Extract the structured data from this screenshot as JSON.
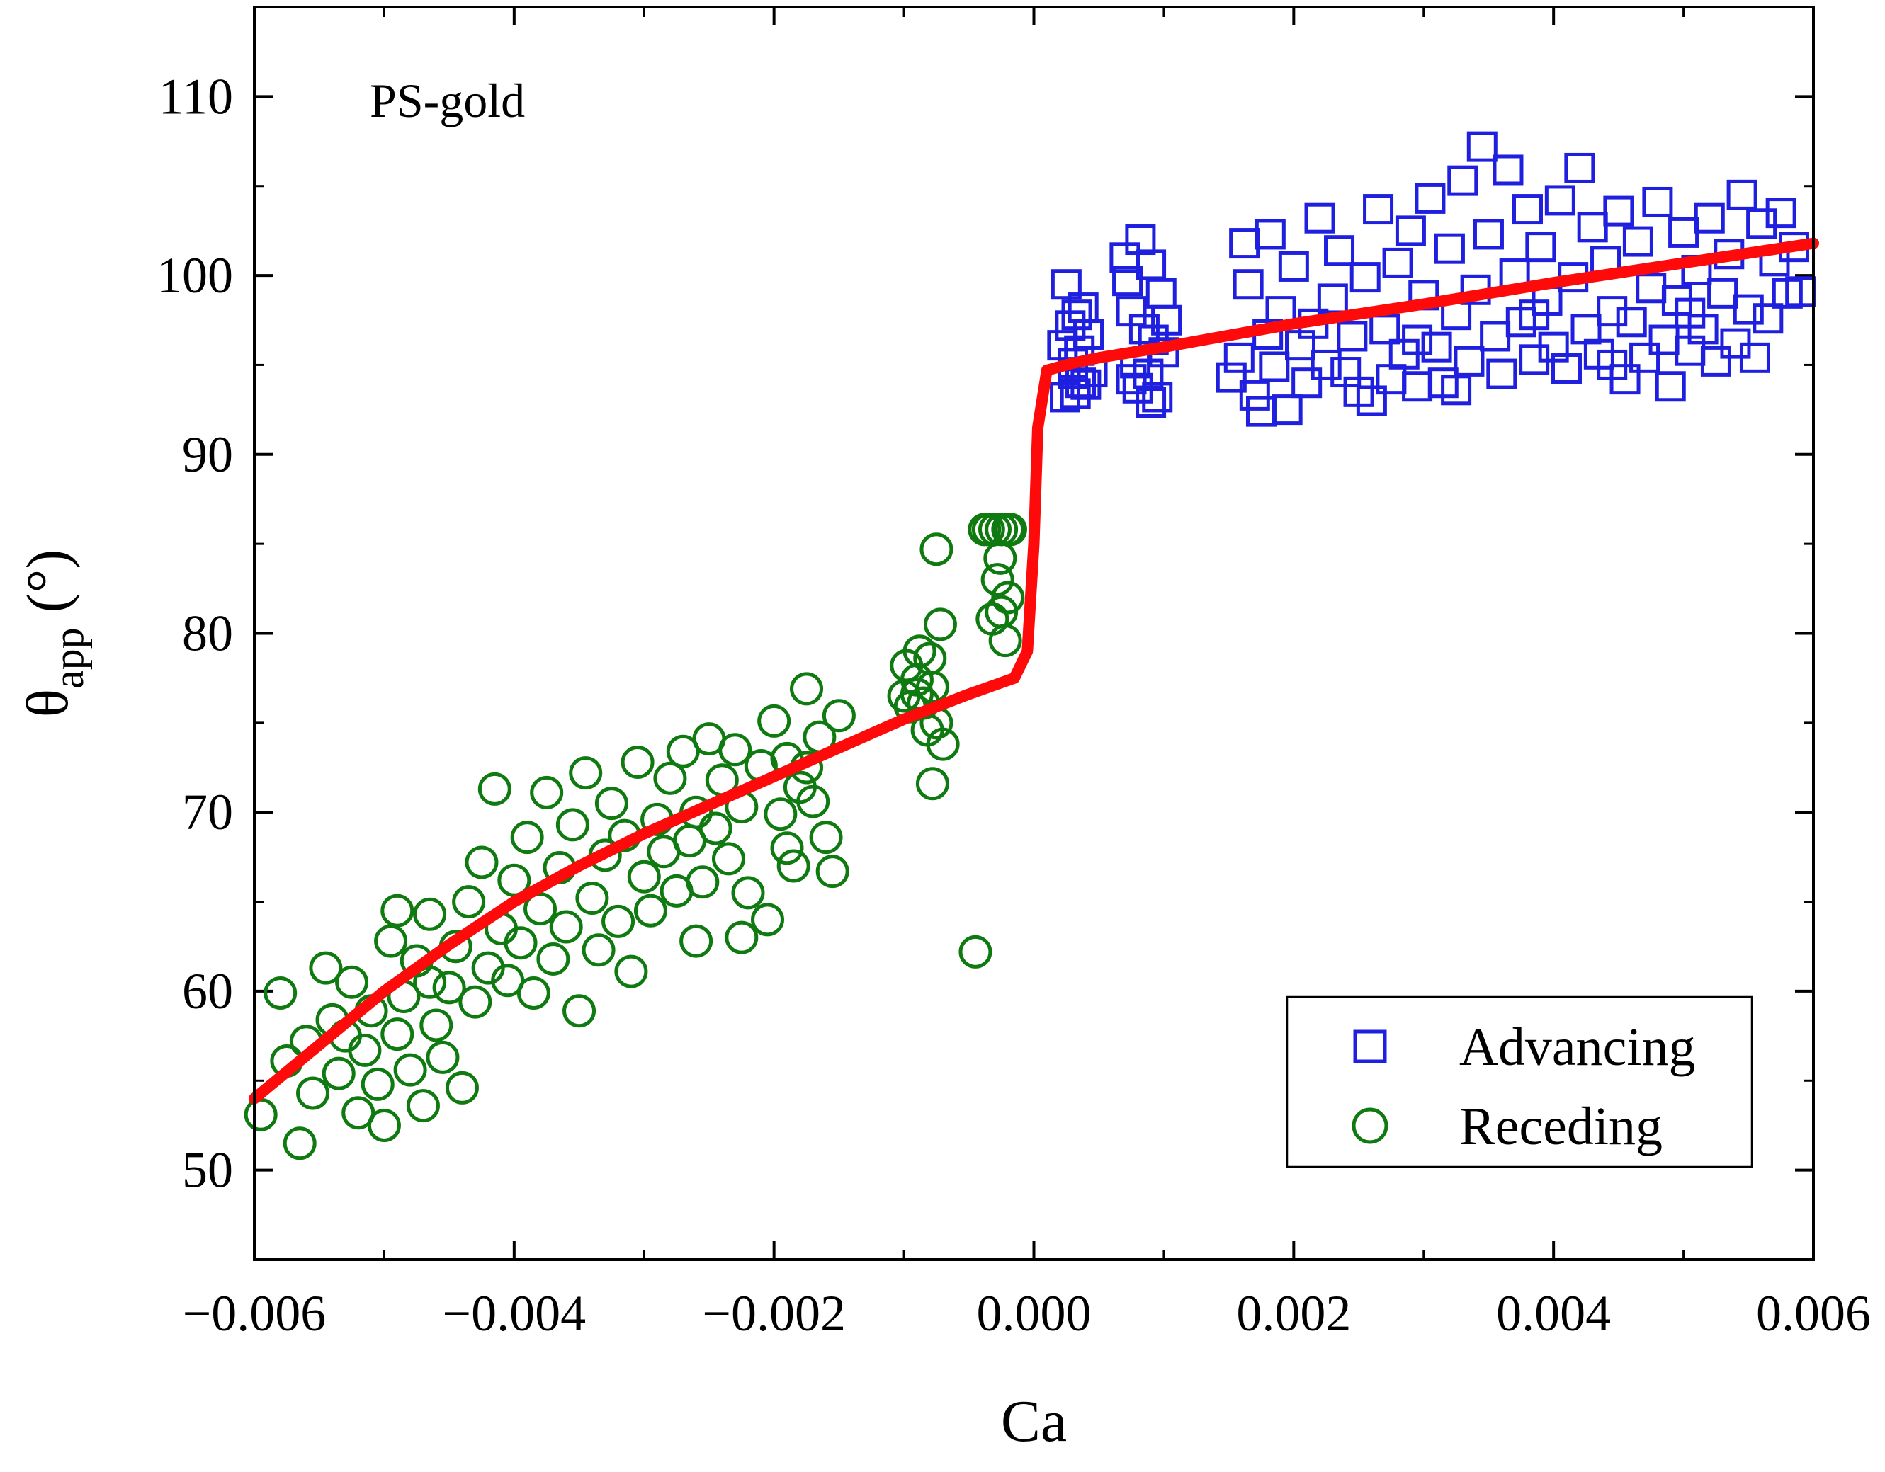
{
  "chart_data": {
    "type": "scatter",
    "annotation": "PS-gold",
    "xlabel": "Ca",
    "ylabel_main": "θ",
    "ylabel_sub": "app",
    "ylabel_unit": " (°)",
    "xlim": [
      -0.006,
      0.006
    ],
    "ylim": [
      45,
      115
    ],
    "xticks": [
      -0.006,
      -0.004,
      -0.002,
      0.0,
      0.002,
      0.004,
      0.006
    ],
    "xtick_labels": [
      "−0.006",
      "−0.004",
      "−0.002",
      "0.000",
      "0.002",
      "0.004",
      "0.006"
    ],
    "yticks": [
      50,
      60,
      70,
      80,
      90,
      100,
      110
    ],
    "ytick_labels": [
      "50",
      "60",
      "70",
      "80",
      "90",
      "100",
      "110"
    ],
    "legend_position": "bottom-right",
    "colors": {
      "advancing": "#1f1fe0",
      "receding": "#0f7a0f",
      "fit": "#ff0a0a"
    },
    "series": [
      {
        "name": "Advancing",
        "marker": "square",
        "points": [
          [
            0.00025,
            99.5
          ],
          [
            0.00028,
            97.2
          ],
          [
            0.0003,
            94.5
          ],
          [
            0.00032,
            93.4
          ],
          [
            0.00035,
            95.8
          ],
          [
            0.00022,
            96.1
          ],
          [
            0.00038,
            98.2
          ],
          [
            0.0004,
            93.9
          ],
          [
            0.00045,
            94.6
          ],
          [
            0.00042,
            96.7
          ],
          [
            0.0003,
            95.1
          ],
          [
            0.00036,
            94.0
          ],
          [
            0.00024,
            93.2
          ],
          [
            0.00033,
            97.8
          ],
          [
            0.0007,
            101.0
          ],
          [
            0.00072,
            99.7
          ],
          [
            0.00075,
            98.0
          ],
          [
            0.00078,
            95.1
          ],
          [
            0.0008,
            93.7
          ],
          [
            0.00082,
            102.0
          ],
          [
            0.00085,
            97.0
          ],
          [
            0.00088,
            94.5
          ],
          [
            0.0009,
            100.6
          ],
          [
            0.00092,
            96.4
          ],
          [
            0.00095,
            93.2
          ],
          [
            0.00098,
            99.0
          ],
          [
            0.001,
            95.7
          ],
          [
            0.00102,
            97.5
          ],
          [
            0.00075,
            94.2
          ],
          [
            0.0009,
            92.9
          ],
          [
            0.00152,
            94.3
          ],
          [
            0.00158,
            95.4
          ],
          [
            0.00162,
            101.8
          ],
          [
            0.00165,
            99.5
          ],
          [
            0.0017,
            93.3
          ],
          [
            0.00175,
            92.4
          ],
          [
            0.0018,
            96.7
          ],
          [
            0.00182,
            102.3
          ],
          [
            0.00185,
            94.9
          ],
          [
            0.0019,
            98.0
          ],
          [
            0.00195,
            92.5
          ],
          [
            0.002,
            100.5
          ],
          [
            0.00205,
            96.1
          ],
          [
            0.0021,
            94.0
          ],
          [
            0.00215,
            97.3
          ],
          [
            0.0022,
            103.2
          ],
          [
            0.00225,
            95.0
          ],
          [
            0.0023,
            98.7
          ],
          [
            0.00235,
            101.4
          ],
          [
            0.0024,
            94.6
          ],
          [
            0.00245,
            96.6
          ],
          [
            0.0025,
            93.5
          ],
          [
            0.00255,
            99.9
          ],
          [
            0.0026,
            93.0
          ],
          [
            0.00265,
            103.7
          ],
          [
            0.0027,
            97.0
          ],
          [
            0.00275,
            94.2
          ],
          [
            0.0028,
            100.7
          ],
          [
            0.00285,
            95.6
          ],
          [
            0.0029,
            102.5
          ],
          [
            0.00295,
            93.8
          ],
          [
            0.003,
            98.9
          ],
          [
            0.00305,
            104.3
          ],
          [
            0.0031,
            96.0
          ],
          [
            0.00315,
            94.0
          ],
          [
            0.0032,
            101.5
          ],
          [
            0.00325,
            97.8
          ],
          [
            0.0033,
            105.3
          ],
          [
            0.00335,
            95.2
          ],
          [
            0.0034,
            99.2
          ],
          [
            0.00345,
            107.2
          ],
          [
            0.0035,
            102.3
          ],
          [
            0.00355,
            96.6
          ],
          [
            0.0036,
            94.5
          ],
          [
            0.00365,
            105.9
          ],
          [
            0.0037,
            100.1
          ],
          [
            0.00375,
            97.4
          ],
          [
            0.0038,
            103.7
          ],
          [
            0.00385,
            95.3
          ],
          [
            0.0039,
            101.6
          ],
          [
            0.00395,
            98.6
          ],
          [
            0.004,
            96.0
          ],
          [
            0.00405,
            104.2
          ],
          [
            0.0041,
            94.8
          ],
          [
            0.00415,
            99.9
          ],
          [
            0.0042,
            106.0
          ],
          [
            0.00425,
            97.0
          ],
          [
            0.0043,
            102.7
          ],
          [
            0.00435,
            95.6
          ],
          [
            0.0044,
            100.8
          ],
          [
            0.00445,
            98.0
          ],
          [
            0.0045,
            103.6
          ],
          [
            0.00455,
            94.2
          ],
          [
            0.0046,
            97.4
          ],
          [
            0.00465,
            101.9
          ],
          [
            0.0047,
            95.4
          ],
          [
            0.00475,
            99.3
          ],
          [
            0.0048,
            104.1
          ],
          [
            0.00485,
            96.4
          ],
          [
            0.0049,
            93.8
          ],
          [
            0.00495,
            98.6
          ],
          [
            0.005,
            102.4
          ],
          [
            0.00505,
            95.8
          ],
          [
            0.0051,
            100.3
          ],
          [
            0.00515,
            97.0
          ],
          [
            0.0052,
            103.2
          ],
          [
            0.00525,
            95.2
          ],
          [
            0.0053,
            99.0
          ],
          [
            0.00535,
            101.2
          ],
          [
            0.0054,
            96.2
          ],
          [
            0.00545,
            104.5
          ],
          [
            0.0055,
            98.1
          ],
          [
            0.00555,
            95.4
          ],
          [
            0.0056,
            102.9
          ],
          [
            0.00565,
            97.6
          ],
          [
            0.0057,
            100.8
          ],
          [
            0.00575,
            103.5
          ],
          [
            0.0058,
            99.0
          ],
          [
            0.00585,
            101.6
          ],
          [
            0.0059,
            99.1
          ],
          [
            0.00295,
            96.4
          ],
          [
            0.00325,
            93.6
          ],
          [
            0.00385,
            97.8
          ],
          [
            0.00445,
            95.0
          ],
          [
            0.00505,
            97.9
          ]
        ]
      },
      {
        "name": "Receding",
        "marker": "circle",
        "points": [
          [
            -0.00595,
            53.1
          ],
          [
            -0.0058,
            59.9
          ],
          [
            -0.00575,
            56.1
          ],
          [
            -0.00565,
            51.5
          ],
          [
            -0.0056,
            57.2
          ],
          [
            -0.00555,
            54.3
          ],
          [
            -0.00545,
            61.3
          ],
          [
            -0.0054,
            58.4
          ],
          [
            -0.00535,
            55.4
          ],
          [
            -0.00525,
            60.5
          ],
          [
            -0.0052,
            53.2
          ],
          [
            -0.00515,
            56.7
          ],
          [
            -0.0051,
            58.9
          ],
          [
            -0.00505,
            54.8
          ],
          [
            -0.005,
            52.5
          ],
          [
            -0.00495,
            62.8
          ],
          [
            -0.0049,
            57.6
          ],
          [
            -0.00485,
            59.7
          ],
          [
            -0.0048,
            55.6
          ],
          [
            -0.00475,
            61.7
          ],
          [
            -0.0047,
            53.6
          ],
          [
            -0.00465,
            64.3
          ],
          [
            -0.0046,
            58.1
          ],
          [
            -0.00455,
            56.3
          ],
          [
            -0.0045,
            60.2
          ],
          [
            -0.00445,
            62.5
          ],
          [
            -0.0044,
            54.6
          ],
          [
            -0.00435,
            65.0
          ],
          [
            -0.0043,
            59.4
          ],
          [
            -0.00425,
            67.2
          ],
          [
            -0.0042,
            61.3
          ],
          [
            -0.00415,
            71.3
          ],
          [
            -0.0041,
            63.5
          ],
          [
            -0.00405,
            60.6
          ],
          [
            -0.004,
            66.2
          ],
          [
            -0.00395,
            62.7
          ],
          [
            -0.0039,
            68.6
          ],
          [
            -0.00385,
            59.9
          ],
          [
            -0.0038,
            64.6
          ],
          [
            -0.00375,
            71.1
          ],
          [
            -0.0037,
            61.8
          ],
          [
            -0.00365,
            66.9
          ],
          [
            -0.0036,
            63.6
          ],
          [
            -0.00355,
            69.3
          ],
          [
            -0.0035,
            58.9
          ],
          [
            -0.00345,
            72.2
          ],
          [
            -0.0034,
            65.2
          ],
          [
            -0.00335,
            62.3
          ],
          [
            -0.0033,
            67.6
          ],
          [
            -0.00325,
            70.5
          ],
          [
            -0.0032,
            63.9
          ],
          [
            -0.00315,
            68.7
          ],
          [
            -0.0031,
            61.1
          ],
          [
            -0.00305,
            72.8
          ],
          [
            -0.003,
            66.4
          ],
          [
            -0.00295,
            64.5
          ],
          [
            -0.0029,
            69.6
          ],
          [
            -0.00285,
            67.8
          ],
          [
            -0.0028,
            71.9
          ],
          [
            -0.00275,
            65.6
          ],
          [
            -0.0027,
            73.4
          ],
          [
            -0.00265,
            68.4
          ],
          [
            -0.0026,
            70.0
          ],
          [
            -0.00255,
            66.1
          ],
          [
            -0.0025,
            74.1
          ],
          [
            -0.00245,
            69.1
          ],
          [
            -0.0024,
            71.8
          ],
          [
            -0.00235,
            67.4
          ],
          [
            -0.0023,
            73.5
          ],
          [
            -0.00225,
            70.3
          ],
          [
            -0.0022,
            65.5
          ],
          [
            -0.0021,
            72.6
          ],
          [
            -0.002,
            75.1
          ],
          [
            -0.00195,
            69.9
          ],
          [
            -0.0019,
            73.0
          ],
          [
            -0.00185,
            67.0
          ],
          [
            -0.0018,
            71.4
          ],
          [
            -0.00175,
            76.9
          ],
          [
            -0.0017,
            70.6
          ],
          [
            -0.00165,
            74.2
          ],
          [
            -0.0016,
            68.6
          ],
          [
            -0.00155,
            66.7
          ],
          [
            -0.0015,
            75.4
          ],
          [
            -0.00175,
            72.5
          ],
          [
            -0.0019,
            68.0
          ],
          [
            -0.00205,
            64.0
          ],
          [
            -0.00225,
            63.0
          ],
          [
            -0.0026,
            62.8
          ],
          [
            -0.001,
            76.5
          ],
          [
            -0.00098,
            78.2
          ],
          [
            -0.00095,
            75.9
          ],
          [
            -0.0009,
            77.4
          ],
          [
            -0.00088,
            79.0
          ],
          [
            -0.00085,
            76.1
          ],
          [
            -0.00082,
            74.6
          ],
          [
            -0.0008,
            78.6
          ],
          [
            -0.00078,
            77.0
          ],
          [
            -0.00075,
            75.0
          ],
          [
            -0.00072,
            80.5
          ],
          [
            -0.0007,
            73.8
          ],
          [
            -0.00078,
            71.6
          ],
          [
            -0.00075,
            84.7
          ],
          [
            -0.0009,
            76.6
          ],
          [
            -0.00035,
            85.8
          ],
          [
            -0.0003,
            85.8
          ],
          [
            -0.00025,
            85.8
          ],
          [
            -0.0002,
            85.8
          ],
          [
            -0.00028,
            83.0
          ],
          [
            -0.00025,
            81.2
          ],
          [
            -0.00022,
            79.6
          ],
          [
            -0.0002,
            82.0
          ],
          [
            -0.00032,
            80.8
          ],
          [
            -0.00026,
            84.2
          ],
          [
            -0.00038,
            85.8
          ],
          [
            -0.00018,
            85.8
          ],
          [
            -0.00045,
            62.2
          ],
          [
            -0.0049,
            64.5
          ],
          [
            -0.00465,
            60.5
          ],
          [
            -0.0053,
            57.5
          ]
        ]
      },
      {
        "name": "fit",
        "marker": "line",
        "points": [
          [
            -0.006,
            54.0
          ],
          [
            -0.0055,
            57.0
          ],
          [
            -0.005,
            60.0
          ],
          [
            -0.0045,
            62.6
          ],
          [
            -0.004,
            65.0
          ],
          [
            -0.0035,
            67.0
          ],
          [
            -0.003,
            68.8
          ],
          [
            -0.0025,
            70.4
          ],
          [
            -0.002,
            72.0
          ],
          [
            -0.0015,
            73.6
          ],
          [
            -0.001,
            75.2
          ],
          [
            -0.0005,
            76.6
          ],
          [
            -0.00015,
            77.5
          ],
          [
            -5e-05,
            79.0
          ],
          [
            0.0,
            85.0
          ],
          [
            3e-05,
            91.5
          ],
          [
            0.0001,
            94.7
          ],
          [
            0.0003,
            95.1
          ],
          [
            0.0005,
            95.4
          ],
          [
            0.001,
            96.0
          ],
          [
            0.002,
            97.3
          ],
          [
            0.003,
            98.4
          ],
          [
            0.004,
            99.6
          ],
          [
            0.005,
            100.7
          ],
          [
            0.006,
            101.8
          ]
        ]
      }
    ]
  }
}
